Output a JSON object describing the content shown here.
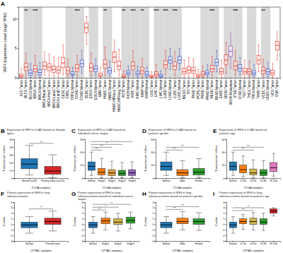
{
  "chart_data": [
    {
      "type": "box",
      "panel": "A",
      "y_label": "IRF4 Expression Level (log2 TPM)",
      "categories": [
        "ACC.Tumor",
        "BLCA.Tumor",
        "BLCA.Normal",
        "BRCA.Tumor",
        "BRCA.Normal",
        "BRCA-Basal.Tumor",
        "BRCA-Her2.Tumor",
        "BRCA-LumA.Tumor",
        "BRCA-LumB.Tumor",
        "CESC.Tumor",
        "CHOL.Tumor",
        "CHOL.Normal",
        "COAD.Tumor",
        "COAD.Normal",
        "DLBC.Tumor",
        "ESCA.Tumor",
        "ESCA.Normal",
        "GBM.Tumor",
        "HNSC.Tumor",
        "HNSC.Normal",
        "HNSC-HPVpos.Tumor",
        "HNSC-HPVneg.Tumor",
        "KICH.Tumor",
        "KICH.Normal",
        "KIRC.Tumor",
        "KIRC.Normal",
        "KIRP.Tumor",
        "KIRP.Normal",
        "LGG.Tumor",
        "LIHC.Tumor",
        "LIHC.Normal",
        "LUAD.Tumor",
        "LUAD.Normal",
        "LUSC.Tumor",
        "LUSC.Normal",
        "MESO.Tumor",
        "OV.Tumor",
        "PAAD.Tumor",
        "PCPG.Tumor",
        "PRAD.Tumor",
        "PRAD.Normal",
        "READ.Tumor",
        "READ.Normal",
        "SARC.Tumor",
        "SKCM.Tumor",
        "SKCM.Metastasis",
        "STAD.Tumor",
        "STAD.Normal",
        "TGCT.Tumor",
        "THCA.Tumor",
        "THCA.Normal",
        "THYM.Tumor",
        "UCEC.Tumor",
        "UCEC.Normal",
        "UCS.Tumor",
        "UVM.Tumor"
      ],
      "values": [
        [
          0,
          0.1,
          0.3,
          0.6,
          1.6
        ],
        [
          0.3,
          1.2,
          1.8,
          2.5,
          4.2
        ],
        [
          0,
          0.4,
          0.8,
          1.3,
          2.4
        ],
        [
          0.2,
          1.0,
          1.5,
          2.1,
          3.8
        ],
        [
          0.1,
          0.5,
          0.9,
          1.4,
          2.6
        ],
        [
          0.4,
          1.4,
          2.0,
          2.7,
          4.4
        ],
        [
          0.3,
          1.2,
          1.8,
          2.4,
          4.0
        ],
        [
          0.2,
          0.9,
          1.4,
          2.0,
          3.6
        ],
        [
          0.2,
          0.8,
          1.3,
          1.9,
          3.4
        ],
        [
          0.5,
          1.7,
          2.5,
          3.4,
          5.6
        ],
        [
          0.2,
          0.7,
          1.2,
          1.8,
          3.2
        ],
        [
          0.1,
          0.4,
          0.6,
          1.0,
          1.8
        ],
        [
          0.3,
          1.1,
          1.6,
          2.2,
          3.8
        ],
        [
          0.8,
          1.9,
          2.4,
          3.0,
          4.6
        ],
        [
          5.6,
          7.6,
          8.5,
          9.3,
          10.4
        ],
        [
          0.3,
          1.1,
          1.7,
          2.4,
          4.2
        ],
        [
          0.4,
          1.0,
          1.5,
          2.0,
          3.2
        ],
        [
          0,
          0.2,
          0.4,
          0.8,
          1.8
        ],
        [
          0.4,
          1.6,
          2.3,
          3.1,
          5.2
        ],
        [
          0.3,
          0.8,
          1.2,
          1.7,
          2.8
        ],
        [
          1.0,
          2.6,
          3.5,
          4.4,
          6.4
        ],
        [
          0.3,
          1.4,
          2.0,
          2.8,
          4.8
        ],
        [
          0,
          0.1,
          0.2,
          0.5,
          1.2
        ],
        [
          0.2,
          0.5,
          0.8,
          1.2,
          2.0
        ],
        [
          0.4,
          1.4,
          2.0,
          2.7,
          4.6
        ],
        [
          0.1,
          0.4,
          0.7,
          1.1,
          2.0
        ],
        [
          0.2,
          0.7,
          1.2,
          1.8,
          3.2
        ],
        [
          0.1,
          0.3,
          0.6,
          1.0,
          1.8
        ],
        [
          0,
          0.1,
          0.2,
          0.4,
          1.0
        ],
        [
          0,
          0.3,
          0.6,
          1.0,
          2.2
        ],
        [
          0,
          0.1,
          0.3,
          0.6,
          1.2
        ],
        [
          0.5,
          1.6,
          2.2,
          2.9,
          4.6
        ],
        [
          1.4,
          2.5,
          3.0,
          3.6,
          5.0
        ],
        [
          0.4,
          1.4,
          2.0,
          2.7,
          4.4
        ],
        [
          1.4,
          2.5,
          3.0,
          3.6,
          5.0
        ],
        [
          0.1,
          0.6,
          1.0,
          1.6,
          3.0
        ],
        [
          0.2,
          0.8,
          1.3,
          1.9,
          3.4
        ],
        [
          0.2,
          0.7,
          1.2,
          1.8,
          3.2
        ],
        [
          0,
          0.1,
          0.3,
          0.6,
          1.4
        ],
        [
          0,
          0.3,
          0.6,
          1.0,
          2.0
        ],
        [
          0.2,
          0.5,
          0.8,
          1.2,
          2.2
        ],
        [
          0.3,
          1.0,
          1.5,
          2.1,
          3.6
        ],
        [
          1.0,
          2.1,
          2.6,
          3.2,
          4.6
        ],
        [
          0.1,
          0.6,
          1.0,
          1.6,
          3.0
        ],
        [
          0.8,
          2.2,
          3.0,
          3.9,
          6.0
        ],
        [
          1.6,
          3.6,
          4.5,
          5.4,
          7.6
        ],
        [
          0.4,
          1.4,
          2.0,
          2.8,
          4.6
        ],
        [
          0.5,
          1.1,
          1.6,
          2.2,
          3.4
        ],
        [
          0.1,
          0.6,
          1.0,
          1.6,
          3.0
        ],
        [
          0.2,
          0.6,
          1.0,
          1.5,
          2.8
        ],
        [
          0.2,
          0.5,
          0.8,
          1.2,
          2.2
        ],
        [
          1.0,
          2.3,
          3.0,
          3.8,
          5.6
        ],
        [
          0.2,
          0.7,
          1.2,
          1.8,
          3.2
        ],
        [
          0.2,
          0.6,
          1.0,
          1.5,
          2.6
        ],
        [
          0.1,
          0.4,
          0.8,
          1.3,
          2.4
        ],
        [
          3.0,
          4.7,
          5.5,
          6.2,
          7.8
        ]
      ],
      "colors": [
        "#e8291c",
        "#e8291c",
        "#2a44c8",
        "#e8291c",
        "#2a44c8",
        "#e8291c",
        "#e8291c",
        "#e8291c",
        "#e8291c",
        "#e8291c",
        "#e8291c",
        "#2a44c8",
        "#e8291c",
        "#2a44c8",
        "#e8291c",
        "#e8291c",
        "#2a44c8",
        "#e8291c",
        "#e8291c",
        "#2a44c8",
        "#e8291c",
        "#e8291c",
        "#e8291c",
        "#2a44c8",
        "#e8291c",
        "#2a44c8",
        "#e8291c",
        "#2a44c8",
        "#e8291c",
        "#e8291c",
        "#2a44c8",
        "#e8291c",
        "#2a44c8",
        "#e8291c",
        "#2a44c8",
        "#e8291c",
        "#e8291c",
        "#e8291c",
        "#e8291c",
        "#e8291c",
        "#2a44c8",
        "#e8291c",
        "#2a44c8",
        "#e8291c",
        "#e8291c",
        "#8e44ad",
        "#e8291c",
        "#2a44c8",
        "#e8291c",
        "#e8291c",
        "#2a44c8",
        "#e8291c",
        "#e8291c",
        "#2a44c8",
        "#e8291c",
        "#e8291c"
      ],
      "ylim": [
        0,
        12
      ],
      "yticks": [
        0,
        5,
        10
      ],
      "annotations": [
        {
          "index": 1,
          "text": "**"
        },
        {
          "index": 3,
          "text": "***"
        },
        {
          "index": 12,
          "text": "***"
        },
        {
          "index": 18,
          "text": "**"
        },
        {
          "index": 22,
          "text": "**"
        },
        {
          "index": 24,
          "text": "***"
        },
        {
          "index": 26,
          "text": "**"
        },
        {
          "index": 29,
          "text": "***"
        },
        {
          "index": 31,
          "text": "***"
        },
        {
          "index": 33,
          "text": "***"
        },
        {
          "index": 41,
          "text": "***"
        },
        {
          "index": 46,
          "text": "***"
        },
        {
          "index": 52,
          "text": "**"
        }
      ]
    },
    {
      "type": "box",
      "panel": "B",
      "title": "Expression of IRF4 in LUAD based on Sample types",
      "y_label": "Transcript per million",
      "x_label": "TCGA samples",
      "categories": [
        "Normal (n=59)",
        "Primary tumor (n=515)"
      ],
      "values": [
        [
          4,
          12,
          18,
          25,
          42
        ],
        [
          0.5,
          5,
          9,
          15,
          30
        ]
      ],
      "colors": [
        "#1f77b4",
        "#d62728"
      ],
      "ylim": [
        0,
        50
      ],
      "yticks": [
        0,
        10,
        20,
        30,
        40,
        50
      ],
      "comparisons": [
        {
          "from": 0,
          "to": 1,
          "text": "***"
        }
      ]
    },
    {
      "type": "box",
      "panel": "C",
      "title": "Expression of IRF4 in LUAD based on individual cancer stages",
      "y_label": "Transcript per million",
      "x_label": "TCGA samples",
      "categories": [
        "Normal",
        "Stage1",
        "Stage2",
        "Stage3",
        "Stage4"
      ],
      "values": [
        [
          4,
          12,
          18,
          25,
          40
        ],
        [
          0.5,
          5,
          9,
          15,
          30
        ],
        [
          0.5,
          4,
          8,
          13,
          26
        ],
        [
          0.5,
          4,
          7,
          12,
          24
        ],
        [
          0.5,
          4,
          8,
          13,
          25
        ]
      ],
      "colors": [
        "#1f77b4",
        "#ff7f0e",
        "#e6a23c",
        "#2ca02c",
        "#9467bd"
      ],
      "ylim": [
        0,
        60
      ],
      "yticks": [
        0,
        20,
        40,
        60
      ],
      "comparisons": [
        {
          "from": 0,
          "to": 1,
          "text": "***"
        },
        {
          "from": 0,
          "to": 2,
          "text": "***"
        },
        {
          "from": 0,
          "to": 3,
          "text": "**"
        },
        {
          "from": 0,
          "to": 4,
          "text": "*"
        }
      ]
    },
    {
      "type": "box",
      "panel": "D",
      "title": "Expression of IRF4 in LUAD based on patient's gender",
      "y_label": "Transcript per million",
      "x_label": "TCGA samples",
      "categories": [
        "Normal",
        "Male",
        "Female"
      ],
      "values": [
        [
          4,
          12,
          18,
          25,
          40
        ],
        [
          0.5,
          4,
          8,
          13,
          27
        ],
        [
          0.5,
          5,
          9,
          15,
          30
        ]
      ],
      "colors": [
        "#1f77b4",
        "#ff7f0e",
        "#2ca02c"
      ],
      "ylim": [
        0,
        60
      ],
      "yticks": [
        0,
        20,
        40,
        60
      ],
      "comparisons": [
        {
          "from": 0,
          "to": 1,
          "text": "***"
        },
        {
          "from": 0,
          "to": 2,
          "text": "***"
        }
      ]
    },
    {
      "type": "box",
      "panel": "E",
      "title": "Expression of IRF4 in LUAD based on patient's age",
      "y_label": "Transcript per million",
      "x_label": "TCGA samples",
      "categories": [
        "Normal",
        "21-40",
        "41-60",
        "61-80",
        "81-100"
      ],
      "values": [
        [
          4,
          12,
          18,
          25,
          40
        ],
        [
          2,
          8,
          13,
          20,
          34
        ],
        [
          0.5,
          5,
          8,
          14,
          28
        ],
        [
          0.5,
          4,
          8,
          13,
          27
        ],
        [
          3,
          10,
          16,
          24,
          38
        ]
      ],
      "colors": [
        "#1f77b4",
        "#ff7f0e",
        "#d4b84a",
        "#2ca02c",
        "#e377c2"
      ],
      "ylim": [
        0,
        60
      ],
      "yticks": [
        0,
        20,
        40,
        60
      ],
      "comparisons": [
        {
          "from": 0,
          "to": 2,
          "text": "***"
        },
        {
          "from": 0,
          "to": 3,
          "text": "***"
        }
      ]
    },
    {
      "type": "box",
      "panel": "F",
      "title": "Protein expression of IRF4 in lung adenocarcinoma",
      "y_label": "Z-value",
      "x_label": "CPTAC samples",
      "categories": [
        "Normal",
        "Primary tumor"
      ],
      "values": [
        [
          -1.6,
          -0.6,
          -0.1,
          0.4,
          1.4
        ],
        [
          -1.2,
          0,
          0.5,
          1.1,
          2.4
        ]
      ],
      "colors": [
        "#1f77b4",
        "#d62728"
      ],
      "ylim": [
        -3,
        4
      ],
      "yticks": [
        -3,
        -2,
        -1,
        0,
        1,
        2,
        3,
        4
      ],
      "comparisons": [
        {
          "from": 0,
          "to": 1,
          "text": "***"
        }
      ]
    },
    {
      "type": "box",
      "panel": "G",
      "title": "Protein expression of IRF4 in lung adenocarcinoma based on individual cancer stages",
      "y_label": "Z-value",
      "x_label": "CPTAC samples",
      "categories": [
        "Normal",
        "Stage1",
        "Stage2",
        "Stage3"
      ],
      "values": [
        [
          -1.6,
          -0.6,
          -0.1,
          0.4,
          1.4
        ],
        [
          -1.0,
          0.1,
          0.6,
          1.1,
          2.2
        ],
        [
          -1.2,
          0,
          0.4,
          1.0,
          2.0
        ],
        [
          -0.8,
          0.2,
          0.7,
          1.3,
          2.2
        ]
      ],
      "colors": [
        "#1f77b4",
        "#ff7f0e",
        "#d4b84a",
        "#2ca02c"
      ],
      "ylim": [
        -3,
        4
      ],
      "yticks": [
        -3,
        -2,
        -1,
        0,
        1,
        2,
        3,
        4
      ],
      "comparisons": [
        {
          "from": 0,
          "to": 1,
          "text": "***"
        },
        {
          "from": 0,
          "to": 2,
          "text": "*"
        },
        {
          "from": 0,
          "to": 3,
          "text": "**"
        }
      ]
    },
    {
      "type": "box",
      "panel": "H",
      "title": "Protein expression of IRF4 in lung adenocarcinoma based on patient's gender",
      "y_label": "Z-value",
      "x_label": "CPTAC samples",
      "categories": [
        "Normal",
        "Male",
        "Female"
      ],
      "values": [
        [
          -1.6,
          -0.6,
          -0.1,
          0.4,
          1.4
        ],
        [
          -1.0,
          0.1,
          0.5,
          1.1,
          2.3
        ],
        [
          -1.1,
          0,
          0.5,
          1.0,
          2.1
        ]
      ],
      "colors": [
        "#1f77b4",
        "#ff7f0e",
        "#2ca02c"
      ],
      "ylim": [
        -3,
        4
      ],
      "yticks": [
        -3,
        -2,
        -1,
        0,
        1,
        2,
        3,
        4
      ],
      "comparisons": [
        {
          "from": 0,
          "to": 1,
          "text": "***"
        },
        {
          "from": 0,
          "to": 2,
          "text": "***"
        }
      ]
    },
    {
      "type": "box",
      "panel": "I",
      "title": "Protein expression of IRF4 in lung adenocarcinoma based on patient's age",
      "y_label": "Z-value",
      "x_label": "CPTAC samples",
      "categories": [
        "Normal",
        "21-40",
        "41-60",
        "61-80",
        "81-100"
      ],
      "values": [
        [
          -1.6,
          -0.6,
          -0.1,
          0.4,
          1.4
        ],
        [
          -0.9,
          0.1,
          0.5,
          1.0,
          1.8
        ],
        [
          -1.0,
          0,
          0.5,
          1.1,
          2.1
        ],
        [
          -1.1,
          0,
          0.4,
          1.0,
          2.0
        ],
        [
          1.5,
          2.0,
          2.4,
          2.8,
          3.0
        ]
      ],
      "colors": [
        "#1f77b4",
        "#ff7f0e",
        "#d4b84a",
        "#2ca02c",
        "#d62728"
      ],
      "ylim": [
        -3,
        4
      ],
      "yticks": [
        -3,
        -2,
        -1,
        0,
        1,
        2,
        3,
        4
      ],
      "comparisons": [
        {
          "from": 0,
          "to": 2,
          "text": "***"
        },
        {
          "from": 0,
          "to": 3,
          "text": "**"
        }
      ]
    }
  ]
}
